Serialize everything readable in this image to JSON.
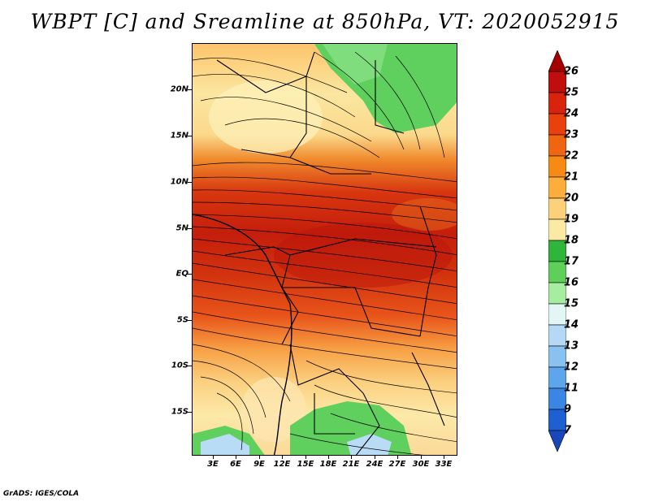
{
  "title": "WBPT [C] and Sreamline at 850hPa, VT: 2020052915",
  "footer": "GrADS: IGES/COLA",
  "map": {
    "lat_labels": [
      "20N",
      "15N",
      "10N",
      "5N",
      "EQ",
      "5S",
      "10S",
      "15S"
    ],
    "lon_labels": [
      "3E",
      "6E",
      "9E",
      "12E",
      "15E",
      "18E",
      "21E",
      "24E",
      "27E",
      "30E",
      "33E"
    ]
  },
  "colorbar": {
    "labels": [
      "26",
      "25",
      "24",
      "23",
      "22",
      "21",
      "20",
      "19",
      "18",
      "17",
      "16",
      "15",
      "14",
      "13",
      "12",
      "11",
      "9",
      "7"
    ],
    "colors": [
      "#a50000",
      "#c00d0d",
      "#d8240d",
      "#e8410c",
      "#f06510",
      "#f78a14",
      "#fbae3c",
      "#fdd17a",
      "#fbeaa3",
      "#2fb53a",
      "#5ed05a",
      "#a6eda0",
      "#e2f7f5",
      "#b4d8f5",
      "#89c2f1",
      "#5ea6ec",
      "#3a86e2",
      "#1e5fd2",
      "#1747b8"
    ]
  }
}
